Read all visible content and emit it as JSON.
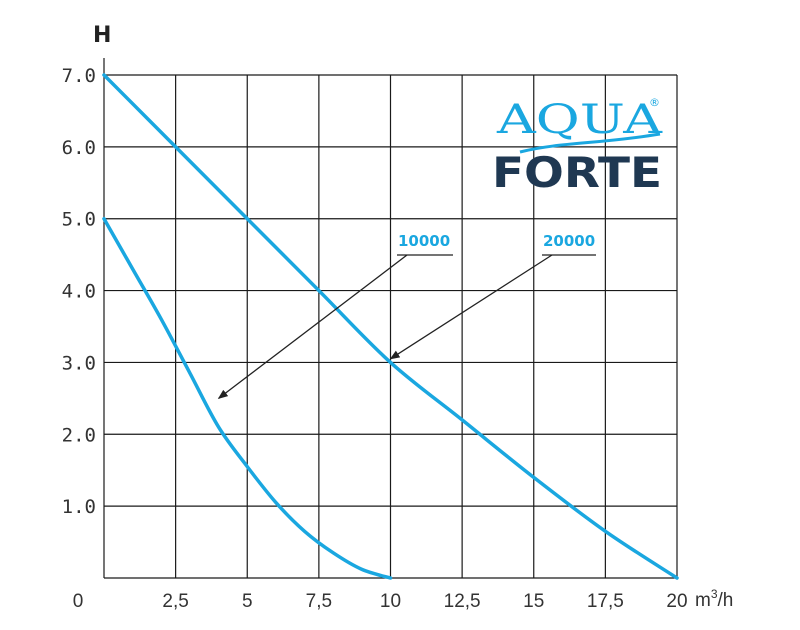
{
  "chart_data": {
    "type": "line",
    "ylabel": "H",
    "xlabel_prefix": "m",
    "xlabel_sup": "3",
    "xlabel_suffix": "/h",
    "xlim": [
      0,
      20
    ],
    "ylim": [
      0,
      7
    ],
    "x_ticks": [
      "0",
      "2,5",
      "5",
      "7,5",
      "10",
      "12,5",
      "15",
      "17,5",
      "20"
    ],
    "y_ticks": [
      "1.0",
      "2.0",
      "3.0",
      "4.0",
      "5.0",
      "6.0",
      "7.0"
    ],
    "grid": true,
    "series": [
      {
        "name": "10000",
        "color": "#1aa7e0",
        "points": [
          [
            0,
            5.0
          ],
          [
            1,
            4.3
          ],
          [
            2,
            3.6
          ],
          [
            3,
            2.85
          ],
          [
            4,
            2.1
          ],
          [
            5,
            1.55
          ],
          [
            6,
            1.05
          ],
          [
            7,
            0.65
          ],
          [
            8,
            0.35
          ],
          [
            9,
            0.12
          ],
          [
            10,
            0.0
          ]
        ]
      },
      {
        "name": "20000",
        "color": "#1aa7e0",
        "points": [
          [
            0,
            7.0
          ],
          [
            2.5,
            6.0
          ],
          [
            5,
            5.0
          ],
          [
            7.5,
            4.0
          ],
          [
            10,
            3.0
          ],
          [
            12.5,
            2.2
          ],
          [
            15,
            1.4
          ],
          [
            17.5,
            0.65
          ],
          [
            20,
            0.0
          ]
        ]
      }
    ],
    "annotations": [
      {
        "series": "10000",
        "pointer_to": [
          4.0,
          2.5
        ]
      },
      {
        "series": "20000",
        "pointer_to": [
          10.0,
          3.05
        ]
      }
    ]
  },
  "logo": {
    "line1": "AQUA",
    "line2": "FORTE",
    "mark": "®"
  },
  "colors": {
    "curve": "#1aa7e0",
    "grid": "#1a1a1a",
    "logo_dark": "#1f3852"
  }
}
